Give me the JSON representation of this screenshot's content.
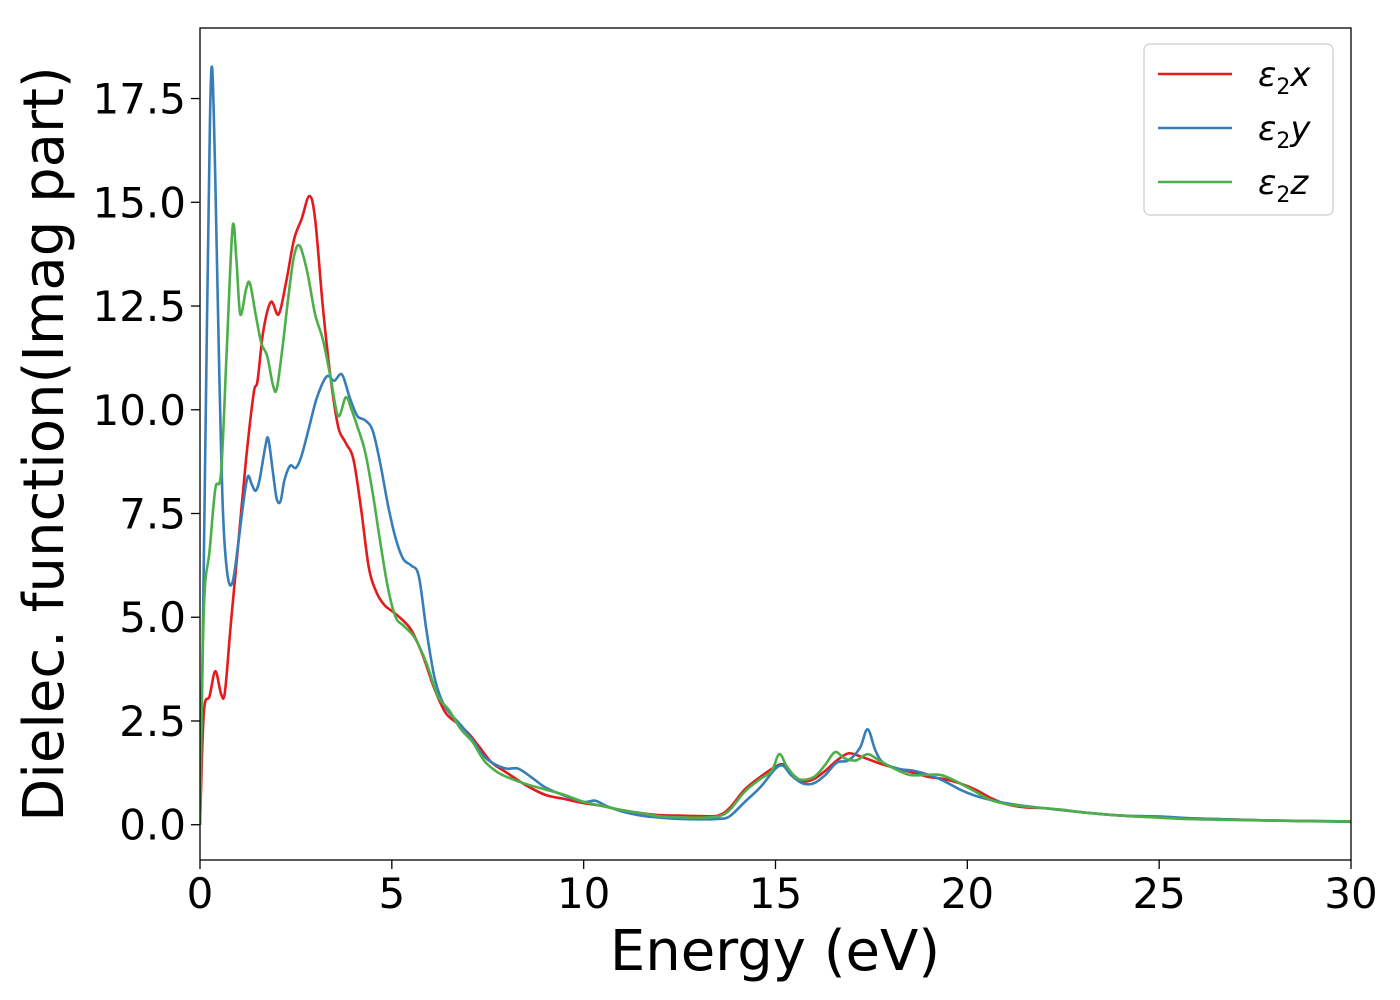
{
  "chart_data": {
    "type": "line",
    "xlabel": "Energy (eV)",
    "ylabel": "Dielec. function(Imag part)",
    "xlim": [
      0,
      30
    ],
    "ylim": [
      -0.85,
      19.2
    ],
    "xticks": [
      0,
      5,
      10,
      15,
      20,
      25,
      30
    ],
    "xtick_labels": [
      "0",
      "5",
      "10",
      "15",
      "20",
      "25",
      "30"
    ],
    "yticks": [
      0.0,
      2.5,
      5.0,
      7.5,
      10.0,
      12.5,
      15.0,
      17.5
    ],
    "ytick_labels": [
      "0.0",
      "2.5",
      "5.0",
      "7.5",
      "10.0",
      "12.5",
      "15.0",
      "17.5"
    ],
    "grid": false,
    "legend_position": "top-right",
    "series": [
      {
        "name": "ε2x",
        "legend": {
          "base": "ε",
          "sub": "2",
          "tail": "x"
        },
        "color": "#e41a1c",
        "points": [
          [
            0,
            0
          ],
          [
            0.1,
            2.7
          ],
          [
            0.25,
            3.1
          ],
          [
            0.4,
            3.7
          ],
          [
            0.55,
            3.15
          ],
          [
            0.65,
            3.2
          ],
          [
            0.8,
            4.8
          ],
          [
            1.0,
            6.8
          ],
          [
            1.2,
            8.8
          ],
          [
            1.4,
            10.4
          ],
          [
            1.5,
            10.7
          ],
          [
            1.65,
            11.9
          ],
          [
            1.85,
            12.6
          ],
          [
            2.05,
            12.3
          ],
          [
            2.25,
            13.1
          ],
          [
            2.45,
            14.1
          ],
          [
            2.65,
            14.6
          ],
          [
            2.85,
            15.15
          ],
          [
            3.0,
            14.6
          ],
          [
            3.2,
            12.5
          ],
          [
            3.4,
            10.8
          ],
          [
            3.6,
            9.6
          ],
          [
            3.8,
            9.2
          ],
          [
            4.0,
            8.8
          ],
          [
            4.2,
            7.6
          ],
          [
            4.4,
            6.2
          ],
          [
            4.6,
            5.6
          ],
          [
            4.8,
            5.3
          ],
          [
            5.0,
            5.15
          ],
          [
            5.2,
            5.0
          ],
          [
            5.5,
            4.7
          ],
          [
            5.8,
            4.1
          ],
          [
            6.1,
            3.3
          ],
          [
            6.4,
            2.7
          ],
          [
            6.7,
            2.45
          ],
          [
            7.0,
            2.2
          ],
          [
            7.3,
            1.85
          ],
          [
            7.6,
            1.5
          ],
          [
            8.0,
            1.25
          ],
          [
            8.5,
            0.95
          ],
          [
            9.0,
            0.72
          ],
          [
            9.5,
            0.62
          ],
          [
            10.0,
            0.52
          ],
          [
            10.5,
            0.45
          ],
          [
            11.0,
            0.35
          ],
          [
            11.5,
            0.28
          ],
          [
            12.0,
            0.23
          ],
          [
            12.5,
            0.22
          ],
          [
            13.0,
            0.21
          ],
          [
            13.5,
            0.22
          ],
          [
            13.8,
            0.4
          ],
          [
            14.2,
            0.85
          ],
          [
            14.6,
            1.15
          ],
          [
            15.0,
            1.4
          ],
          [
            15.2,
            1.45
          ],
          [
            15.4,
            1.25
          ],
          [
            15.7,
            1.05
          ],
          [
            16.0,
            1.1
          ],
          [
            16.3,
            1.3
          ],
          [
            16.6,
            1.55
          ],
          [
            16.9,
            1.72
          ],
          [
            17.2,
            1.65
          ],
          [
            17.5,
            1.55
          ],
          [
            17.8,
            1.45
          ],
          [
            18.2,
            1.35
          ],
          [
            18.6,
            1.25
          ],
          [
            19.0,
            1.15
          ],
          [
            19.4,
            1.1
          ],
          [
            19.8,
            1.0
          ],
          [
            20.2,
            0.85
          ],
          [
            20.6,
            0.65
          ],
          [
            21.0,
            0.5
          ],
          [
            21.5,
            0.42
          ],
          [
            22.0,
            0.4
          ],
          [
            22.5,
            0.35
          ],
          [
            23.0,
            0.3
          ],
          [
            24.0,
            0.22
          ],
          [
            25.0,
            0.18
          ],
          [
            26.0,
            0.15
          ],
          [
            28.0,
            0.1
          ],
          [
            30.0,
            0.08
          ]
        ]
      },
      {
        "name": "ε2y",
        "legend": {
          "base": "ε",
          "sub": "2",
          "tail": "y"
        },
        "color": "#377eb8",
        "points": [
          [
            0,
            0
          ],
          [
            0.08,
            5.0
          ],
          [
            0.18,
            12.0
          ],
          [
            0.26,
            17.0
          ],
          [
            0.32,
            18.2
          ],
          [
            0.4,
            15.5
          ],
          [
            0.5,
            11.0
          ],
          [
            0.6,
            7.5
          ],
          [
            0.72,
            6.0
          ],
          [
            0.85,
            5.85
          ],
          [
            1.0,
            6.8
          ],
          [
            1.15,
            7.9
          ],
          [
            1.25,
            8.4
          ],
          [
            1.35,
            8.2
          ],
          [
            1.45,
            8.05
          ],
          [
            1.55,
            8.3
          ],
          [
            1.7,
            9.1
          ],
          [
            1.78,
            9.3
          ],
          [
            1.9,
            8.5
          ],
          [
            2.0,
            7.85
          ],
          [
            2.1,
            7.8
          ],
          [
            2.2,
            8.3
          ],
          [
            2.35,
            8.65
          ],
          [
            2.5,
            8.6
          ],
          [
            2.65,
            8.9
          ],
          [
            2.85,
            9.6
          ],
          [
            3.05,
            10.3
          ],
          [
            3.3,
            10.8
          ],
          [
            3.5,
            10.7
          ],
          [
            3.7,
            10.85
          ],
          [
            3.9,
            10.3
          ],
          [
            4.1,
            9.85
          ],
          [
            4.3,
            9.75
          ],
          [
            4.5,
            9.5
          ],
          [
            4.7,
            8.7
          ],
          [
            4.9,
            7.7
          ],
          [
            5.1,
            6.9
          ],
          [
            5.3,
            6.4
          ],
          [
            5.5,
            6.25
          ],
          [
            5.7,
            6.0
          ],
          [
            5.9,
            4.7
          ],
          [
            6.1,
            3.6
          ],
          [
            6.3,
            3.0
          ],
          [
            6.5,
            2.7
          ],
          [
            6.8,
            2.4
          ],
          [
            7.1,
            2.05
          ],
          [
            7.4,
            1.65
          ],
          [
            7.7,
            1.45
          ],
          [
            8.0,
            1.35
          ],
          [
            8.3,
            1.35
          ],
          [
            8.7,
            1.1
          ],
          [
            9.0,
            0.9
          ],
          [
            9.5,
            0.7
          ],
          [
            10.0,
            0.55
          ],
          [
            10.3,
            0.58
          ],
          [
            10.6,
            0.45
          ],
          [
            11.0,
            0.32
          ],
          [
            11.5,
            0.22
          ],
          [
            12.0,
            0.17
          ],
          [
            12.5,
            0.14
          ],
          [
            13.0,
            0.13
          ],
          [
            13.5,
            0.14
          ],
          [
            13.8,
            0.2
          ],
          [
            14.2,
            0.55
          ],
          [
            14.6,
            0.9
          ],
          [
            15.0,
            1.35
          ],
          [
            15.2,
            1.42
          ],
          [
            15.4,
            1.2
          ],
          [
            15.7,
            1.0
          ],
          [
            16.0,
            1.0
          ],
          [
            16.3,
            1.2
          ],
          [
            16.6,
            1.5
          ],
          [
            16.9,
            1.55
          ],
          [
            17.2,
            1.85
          ],
          [
            17.4,
            2.3
          ],
          [
            17.6,
            1.8
          ],
          [
            17.8,
            1.5
          ],
          [
            18.2,
            1.35
          ],
          [
            18.6,
            1.3
          ],
          [
            19.0,
            1.2
          ],
          [
            19.4,
            1.05
          ],
          [
            19.8,
            0.85
          ],
          [
            20.2,
            0.7
          ],
          [
            20.6,
            0.6
          ],
          [
            21.0,
            0.52
          ],
          [
            21.5,
            0.45
          ],
          [
            22.0,
            0.4
          ],
          [
            22.5,
            0.35
          ],
          [
            23.0,
            0.3
          ],
          [
            24.0,
            0.22
          ],
          [
            25.0,
            0.2
          ],
          [
            26.0,
            0.15
          ],
          [
            28.0,
            0.1
          ],
          [
            30.0,
            0.07
          ]
        ]
      },
      {
        "name": "ε2z",
        "legend": {
          "base": "ε",
          "sub": "2",
          "tail": "z"
        },
        "color": "#4daf4a",
        "points": [
          [
            0,
            0
          ],
          [
            0.1,
            5.2
          ],
          [
            0.25,
            6.6
          ],
          [
            0.4,
            8.1
          ],
          [
            0.55,
            8.5
          ],
          [
            0.7,
            11.5
          ],
          [
            0.85,
            14.4
          ],
          [
            0.95,
            13.6
          ],
          [
            1.05,
            12.3
          ],
          [
            1.2,
            12.9
          ],
          [
            1.3,
            13.05
          ],
          [
            1.45,
            12.3
          ],
          [
            1.6,
            11.6
          ],
          [
            1.75,
            11.3
          ],
          [
            1.9,
            10.6
          ],
          [
            2.0,
            10.5
          ],
          [
            2.15,
            11.5
          ],
          [
            2.3,
            12.7
          ],
          [
            2.45,
            13.7
          ],
          [
            2.6,
            13.95
          ],
          [
            2.8,
            13.3
          ],
          [
            3.0,
            12.3
          ],
          [
            3.2,
            11.7
          ],
          [
            3.4,
            10.8
          ],
          [
            3.6,
            9.85
          ],
          [
            3.8,
            10.3
          ],
          [
            3.95,
            10.0
          ],
          [
            4.1,
            9.6
          ],
          [
            4.3,
            9.0
          ],
          [
            4.5,
            8.0
          ],
          [
            4.7,
            6.8
          ],
          [
            4.9,
            5.7
          ],
          [
            5.1,
            5.0
          ],
          [
            5.3,
            4.8
          ],
          [
            5.6,
            4.5
          ],
          [
            5.9,
            3.9
          ],
          [
            6.2,
            3.1
          ],
          [
            6.5,
            2.75
          ],
          [
            6.8,
            2.3
          ],
          [
            7.1,
            2.0
          ],
          [
            7.4,
            1.55
          ],
          [
            7.7,
            1.3
          ],
          [
            8.0,
            1.15
          ],
          [
            8.5,
            0.98
          ],
          [
            9.0,
            0.85
          ],
          [
            9.5,
            0.72
          ],
          [
            10.0,
            0.55
          ],
          [
            10.5,
            0.45
          ],
          [
            11.0,
            0.35
          ],
          [
            11.5,
            0.28
          ],
          [
            12.0,
            0.2
          ],
          [
            12.5,
            0.18
          ],
          [
            13.0,
            0.17
          ],
          [
            13.5,
            0.2
          ],
          [
            13.8,
            0.35
          ],
          [
            14.2,
            0.8
          ],
          [
            14.6,
            1.1
          ],
          [
            14.9,
            1.3
          ],
          [
            15.1,
            1.7
          ],
          [
            15.3,
            1.4
          ],
          [
            15.6,
            1.1
          ],
          [
            16.0,
            1.15
          ],
          [
            16.3,
            1.45
          ],
          [
            16.55,
            1.75
          ],
          [
            16.8,
            1.6
          ],
          [
            17.1,
            1.55
          ],
          [
            17.4,
            1.7
          ],
          [
            17.7,
            1.55
          ],
          [
            18.1,
            1.35
          ],
          [
            18.5,
            1.2
          ],
          [
            18.9,
            1.2
          ],
          [
            19.3,
            1.2
          ],
          [
            19.7,
            1.05
          ],
          [
            20.2,
            0.8
          ],
          [
            20.6,
            0.6
          ],
          [
            21.0,
            0.5
          ],
          [
            21.5,
            0.44
          ],
          [
            22.0,
            0.4
          ],
          [
            22.5,
            0.36
          ],
          [
            23.0,
            0.3
          ],
          [
            24.0,
            0.22
          ],
          [
            25.0,
            0.17
          ],
          [
            26.0,
            0.13
          ],
          [
            28.0,
            0.1
          ],
          [
            30.0,
            0.08
          ]
        ]
      }
    ]
  }
}
